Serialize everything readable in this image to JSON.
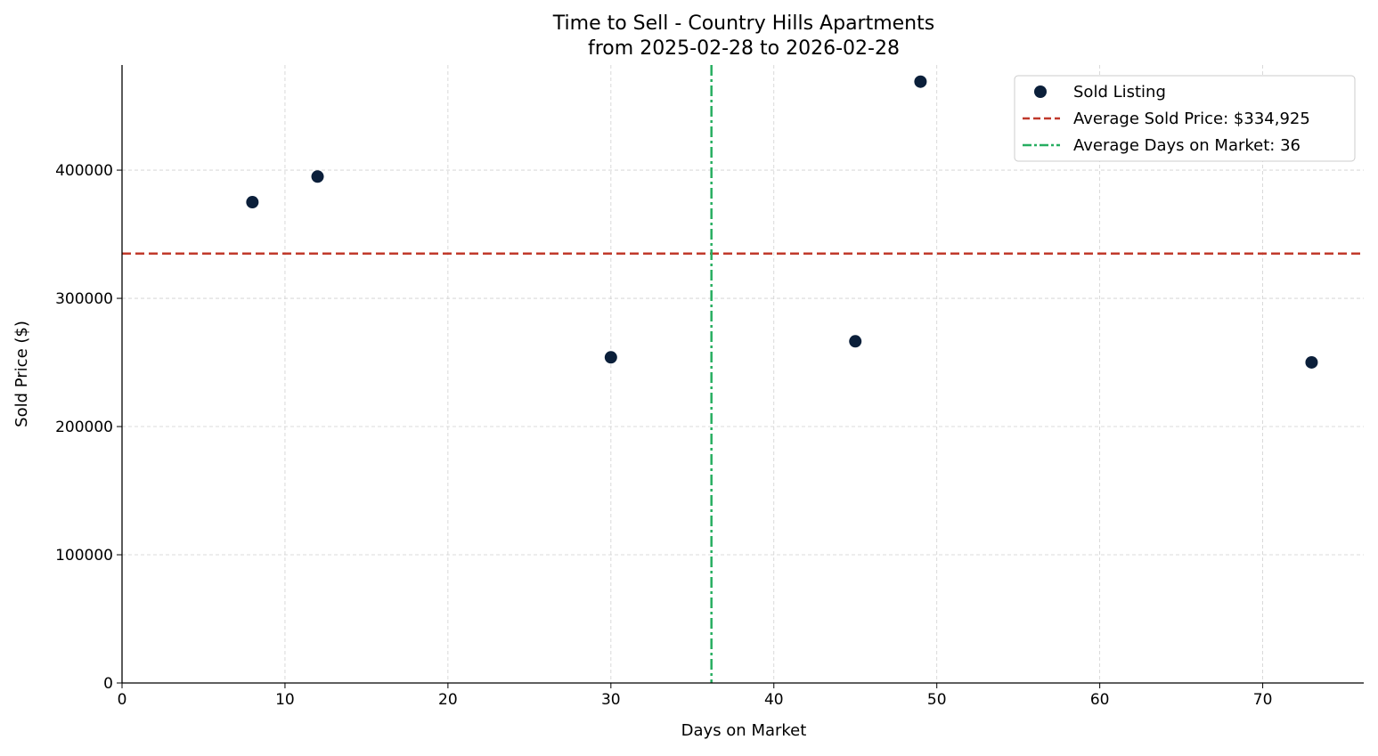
{
  "chart_data": {
    "type": "scatter",
    "title": "Time to Sell - Country Hills Apartments",
    "subtitle": "from 2025-02-28 to 2026-02-28",
    "xlabel": "Days on Market",
    "ylabel": "Sold Price ($)",
    "xlim": [
      0,
      76.2
    ],
    "ylim": [
      0,
      482000
    ],
    "xticks": [
      0,
      10,
      20,
      30,
      40,
      50,
      60,
      70
    ],
    "yticks": [
      0,
      100000,
      200000,
      300000,
      400000
    ],
    "grid": true,
    "legend_placement": "top-right",
    "series": [
      {
        "name": "Sold Listing",
        "color": "#0b1f3a",
        "points": [
          {
            "x": 8,
            "y": 375000
          },
          {
            "x": 12,
            "y": 395000
          },
          {
            "x": 30,
            "y": 254000
          },
          {
            "x": 45,
            "y": 266500
          },
          {
            "x": 49,
            "y": 469000
          },
          {
            "x": 73,
            "y": 250050
          }
        ]
      }
    ],
    "reference_lines": [
      {
        "name": "Average Sold Price: $334,925",
        "orientation": "horizontal",
        "value": 334925,
        "style": "dashed",
        "color": "#c0392b"
      },
      {
        "name": "Average Days on Market: 36",
        "orientation": "vertical",
        "value": 36.17,
        "style": "dashdot",
        "color": "#27ae60"
      }
    ]
  }
}
